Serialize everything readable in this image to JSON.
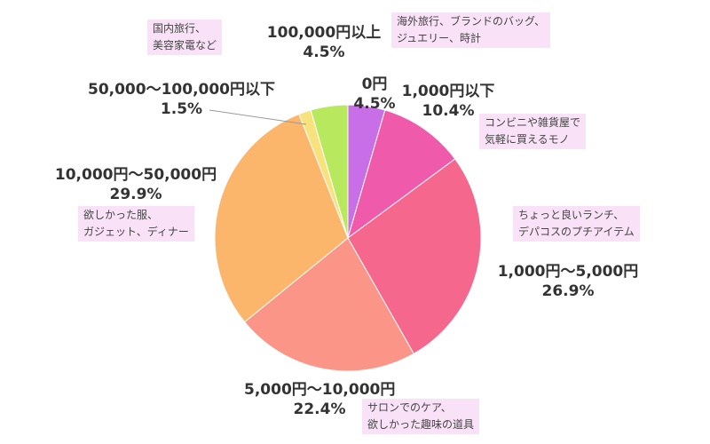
{
  "chart_data": {
    "type": "pie",
    "title": "",
    "start_angle_deg": 0,
    "direction": "clockwise",
    "slices": [
      {
        "label": "0円",
        "value": 4.5,
        "value_label": "4.5%",
        "color": "#c86ee6"
      },
      {
        "label": "1,000円以下",
        "value": 10.4,
        "value_label": "10.4%",
        "color": "#f05aaa"
      },
      {
        "label": "1,000円〜5,000円",
        "value": 26.9,
        "value_label": "26.9%",
        "color": "#f5678d"
      },
      {
        "label": "5,000円〜10,000円",
        "value": 22.4,
        "value_label": "22.4%",
        "color": "#fa9587"
      },
      {
        "label": "10,000円〜50,000円",
        "value": 29.9,
        "value_label": "29.9%",
        "color": "#fcb66c"
      },
      {
        "label": "50,000〜100,000円以下",
        "value": 1.5,
        "value_label": "1.5%",
        "color": "#f7e27e"
      },
      {
        "label": "100,000円以上",
        "value": 4.5,
        "value_label": "4.5%",
        "color": "#b7e85e"
      }
    ],
    "annotations": [
      {
        "line1": "海外旅行、ブランドのバッグ、",
        "line2": "ジュエリー、時計"
      },
      {
        "line1": "コンビニや雑貨屋で",
        "line2": "気軽に買えるモノ"
      },
      {
        "line1": "ちょっと良いランチ、",
        "line2": "デパコスのプチアイテム"
      },
      {
        "line1": "サロンでのケア、",
        "line2": "欲しかった趣味の道具"
      },
      {
        "line1": "欲しかった服、",
        "line2": "ガジェット、ディナー"
      },
      {
        "line1": "国内旅行、",
        "line2": "美容家電など"
      }
    ]
  }
}
